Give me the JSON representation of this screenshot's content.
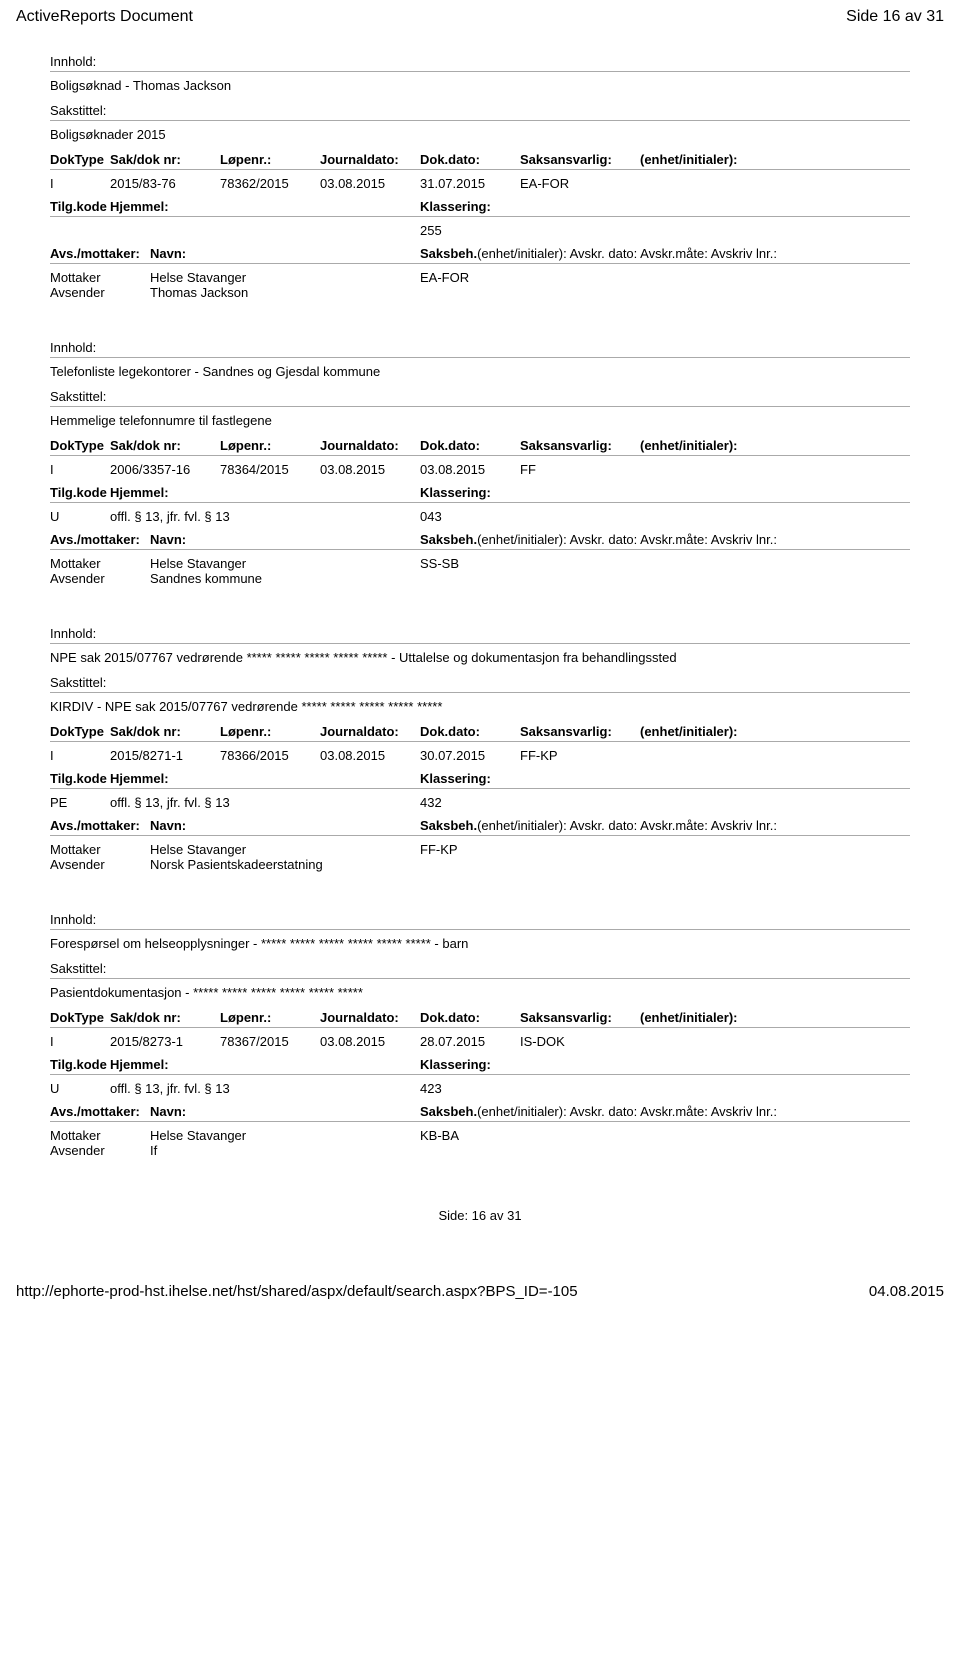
{
  "header": {
    "title": "ActiveReports Document",
    "page_indicator": "Side 16 av 31"
  },
  "labels": {
    "innhold": "Innhold:",
    "sakstittel": "Sakstittel:",
    "doktype": "DokType",
    "sakdok": "Sak/dok nr:",
    "lopenr": "Løpenr.:",
    "journaldato": "Journaldato:",
    "dokdato": "Dok.dato:",
    "saksansvarlig": "Saksansvarlig:",
    "enhet": "(enhet/initialer):",
    "tilgkode": "Tilg.kode",
    "hjemmel": "Hjemmel:",
    "klassering": "Klassering:",
    "avsmottaker": "Avs./mottaker:",
    "navn": "Navn:",
    "saksbeh": "Saksbeh.",
    "saksbeh_suffix": "(enhet/initialer): Avskr. dato: Avskr.måte: Avskriv lnr.:",
    "mottaker": "Mottaker",
    "avsender": "Avsender"
  },
  "records": [
    {
      "innhold": "Boligsøknad - Thomas Jackson",
      "sakstittel": "Boligsøknader 2015",
      "doktype": "I",
      "sakdok": "2015/83-76",
      "lopenr": "78362/2015",
      "journaldato": "03.08.2015",
      "dokdato": "31.07.2015",
      "saksansvarlig": "EA-FOR",
      "tilgkode": "",
      "hjemmel": "",
      "klassering": "255",
      "mottaker_navn": "Helse Stavanger",
      "mottaker_saksbeh": "EA-FOR",
      "avsender_navn": "Thomas Jackson"
    },
    {
      "innhold": "Telefonliste legekontorer - Sandnes og Gjesdal kommune",
      "sakstittel": "Hemmelige telefonnumre til fastlegene",
      "doktype": "I",
      "sakdok": "2006/3357-16",
      "lopenr": "78364/2015",
      "journaldato": "03.08.2015",
      "dokdato": "03.08.2015",
      "saksansvarlig": "FF",
      "tilgkode": "U",
      "hjemmel": "offl. § 13, jfr. fvl. § 13",
      "klassering": "043",
      "mottaker_navn": "Helse Stavanger",
      "mottaker_saksbeh": "SS-SB",
      "avsender_navn": "Sandnes kommune"
    },
    {
      "innhold": "NPE sak 2015/07767 vedrørende ***** ***** ***** ***** ***** - Uttalelse og dokumentasjon fra behandlingssted",
      "sakstittel": "KIRDIV - NPE sak 2015/07767 vedrørende ***** ***** ***** ***** *****",
      "doktype": "I",
      "sakdok": "2015/8271-1",
      "lopenr": "78366/2015",
      "journaldato": "03.08.2015",
      "dokdato": "30.07.2015",
      "saksansvarlig": "FF-KP",
      "tilgkode": "PE",
      "hjemmel": "offl. § 13, jfr. fvl. § 13",
      "klassering": "432",
      "mottaker_navn": "Helse Stavanger",
      "mottaker_saksbeh": "FF-KP",
      "avsender_navn": "Norsk Pasientskadeerstatning"
    },
    {
      "innhold": "Forespørsel om helseopplysninger - ***** ***** ***** ***** ***** ***** - barn",
      "sakstittel": "Pasientdokumentasjon - ***** ***** ***** ***** ***** *****",
      "doktype": "I",
      "sakdok": "2015/8273-1",
      "lopenr": "78367/2015",
      "journaldato": "03.08.2015",
      "dokdato": "28.07.2015",
      "saksansvarlig": "IS-DOK",
      "tilgkode": "U",
      "hjemmel": "offl. § 13, jfr. fvl. § 13",
      "klassering": "423",
      "mottaker_navn": "Helse Stavanger",
      "mottaker_saksbeh": "KB-BA",
      "avsender_navn": "If"
    }
  ],
  "page_number": "Side: 16 av  31",
  "footer": {
    "url": "http://ephorte-prod-hst.ihelse.net/hst/shared/aspx/default/search.aspx?BPS_ID=-105",
    "date": "04.08.2015"
  }
}
